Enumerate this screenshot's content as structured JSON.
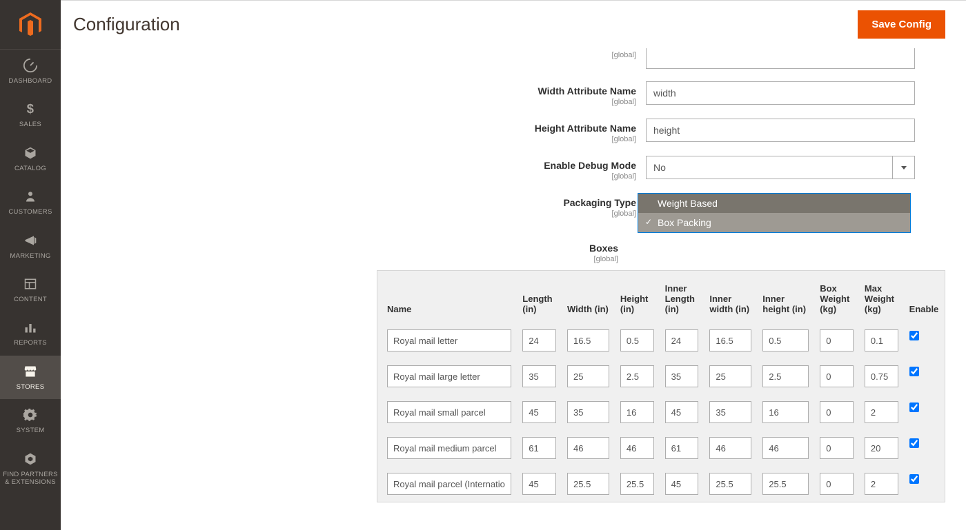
{
  "sidebar": {
    "items": [
      {
        "label": "DASHBOARD"
      },
      {
        "label": "SALES"
      },
      {
        "label": "CATALOG"
      },
      {
        "label": "CUSTOMERS"
      },
      {
        "label": "MARKETING"
      },
      {
        "label": "CONTENT"
      },
      {
        "label": "REPORTS"
      },
      {
        "label": "STORES"
      },
      {
        "label": "SYSTEM"
      },
      {
        "label": "FIND PARTNERS\n& EXTENSIONS"
      }
    ]
  },
  "header": {
    "title": "Configuration",
    "save_button": "Save Config"
  },
  "form": {
    "scope_label": "[global]",
    "top_field": {
      "label": "",
      "value": ""
    },
    "width_attr": {
      "label": "Width Attribute Name",
      "value": "width"
    },
    "height_attr": {
      "label": "Height Attribute Name",
      "value": "height"
    },
    "debug": {
      "label": "Enable Debug Mode",
      "value": "No"
    },
    "packaging": {
      "label": "Packaging Type",
      "options": [
        "Weight Based",
        "Box Packing"
      ],
      "selected": "Box Packing"
    },
    "boxes_label": "Boxes"
  },
  "table": {
    "columns": [
      "Name",
      "Length (in)",
      "Width (in)",
      "Height (in)",
      "Inner Length (in)",
      "Inner width (in)",
      "Inner height (in)",
      "Box Weight (kg)",
      "Max Weight (kg)",
      "Enable"
    ],
    "rows": [
      {
        "name": "Royal mail letter",
        "length": "24",
        "width": "16.5",
        "height": "0.5",
        "ilength": "24",
        "iwidth": "16.5",
        "iheight": "0.5",
        "bweight": "0",
        "mweight": "0.1",
        "enable": true
      },
      {
        "name": "Royal mail large letter",
        "length": "35",
        "width": "25",
        "height": "2.5",
        "ilength": "35",
        "iwidth": "25",
        "iheight": "2.5",
        "bweight": "0",
        "mweight": "0.75",
        "enable": true
      },
      {
        "name": "Royal mail small parcel",
        "length": "45",
        "width": "35",
        "height": "16",
        "ilength": "45",
        "iwidth": "35",
        "iheight": "16",
        "bweight": "0",
        "mweight": "2",
        "enable": true
      },
      {
        "name": "Royal mail medium parcel",
        "length": "61",
        "width": "46",
        "height": "46",
        "ilength": "61",
        "iwidth": "46",
        "iheight": "46",
        "bweight": "0",
        "mweight": "20",
        "enable": true
      },
      {
        "name": "Royal mail parcel (International)",
        "length": "45",
        "width": "25.5",
        "height": "25.5",
        "ilength": "45",
        "iwidth": "25.5",
        "iheight": "25.5",
        "bweight": "0",
        "mweight": "2",
        "enable": true
      }
    ]
  },
  "colors": {
    "sidebar_bg": "#373330",
    "sidebar_active": "#524d49",
    "accent": "#eb5202",
    "table_bg": "#f0f0f0",
    "border": "#adadad"
  }
}
